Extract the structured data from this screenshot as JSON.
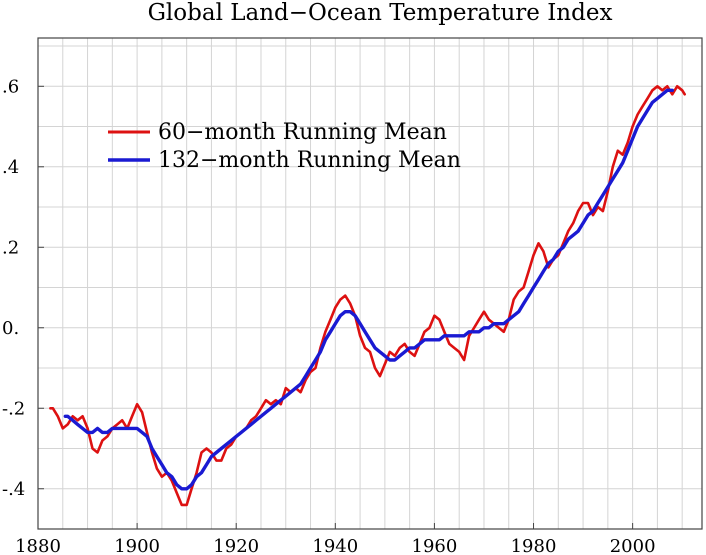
{
  "chart_data": {
    "type": "line",
    "title": "Global Land−Ocean Temperature Index",
    "xlabel": "",
    "ylabel": "",
    "xlim": [
      1880,
      2014
    ],
    "ylim": [
      -0.5,
      0.72
    ],
    "grid": true,
    "legend_position": "top-left",
    "x_ticks": [
      {
        "value": 1880,
        "label": "1880"
      },
      {
        "value": 1900,
        "label": "1900"
      },
      {
        "value": 1920,
        "label": "1920"
      },
      {
        "value": 1940,
        "label": "1940"
      },
      {
        "value": 1960,
        "label": "1960"
      },
      {
        "value": 1980,
        "label": "1980"
      },
      {
        "value": 2000,
        "label": "2000"
      }
    ],
    "x_minor_step": 5,
    "y_ticks": [
      {
        "value": -0.4,
        "label": "-.4"
      },
      {
        "value": -0.2,
        "label": "-.2"
      },
      {
        "value": 0.0,
        "label": "0."
      },
      {
        "value": 0.2,
        "label": "0.2"
      },
      {
        "value": 0.4,
        "label": ".4"
      },
      {
        "value": 0.6,
        "label": ".6"
      }
    ],
    "y_tick_labels_override": {
      "0.2": ".2"
    },
    "y_minor_step": 0.1,
    "series": [
      {
        "name": "60−month Running Mean",
        "color": "#dd1111",
        "x": [
          1882.5,
          1883,
          1884,
          1885,
          1886,
          1887,
          1888,
          1889,
          1890,
          1891,
          1892,
          1893,
          1894,
          1895,
          1896,
          1897,
          1898,
          1899,
          1900,
          1901,
          1902,
          1903,
          1904,
          1905,
          1906,
          1907,
          1908,
          1909,
          1910,
          1911,
          1912,
          1913,
          1914,
          1915,
          1916,
          1917,
          1918,
          1919,
          1920,
          1921,
          1922,
          1923,
          1924,
          1925,
          1926,
          1927,
          1928,
          1929,
          1930,
          1931,
          1932,
          1933,
          1934,
          1935,
          1936,
          1937,
          1938,
          1939,
          1940,
          1941,
          1942,
          1943,
          1944,
          1945,
          1946,
          1947,
          1948,
          1949,
          1950,
          1951,
          1952,
          1953,
          1954,
          1955,
          1956,
          1957,
          1958,
          1959,
          1960,
          1961,
          1962,
          1963,
          1964,
          1965,
          1966,
          1967,
          1968,
          1969,
          1970,
          1971,
          1972,
          1973,
          1974,
          1975,
          1976,
          1977,
          1978,
          1979,
          1980,
          1981,
          1982,
          1983,
          1984,
          1985,
          1986,
          1987,
          1988,
          1989,
          1990,
          1991,
          1992,
          1993,
          1994,
          1995,
          1996,
          1997,
          1998,
          1999,
          2000,
          2001,
          2002,
          2003,
          2004,
          2005,
          2006,
          2007,
          2008,
          2009,
          2010,
          2010.5
        ],
        "values": [
          -0.2,
          -0.2,
          -0.22,
          -0.25,
          -0.24,
          -0.22,
          -0.23,
          -0.22,
          -0.25,
          -0.3,
          -0.31,
          -0.28,
          -0.27,
          -0.25,
          -0.24,
          -0.23,
          -0.25,
          -0.22,
          -0.19,
          -0.21,
          -0.26,
          -0.31,
          -0.35,
          -0.37,
          -0.36,
          -0.38,
          -0.41,
          -0.44,
          -0.44,
          -0.4,
          -0.36,
          -0.31,
          -0.3,
          -0.31,
          -0.33,
          -0.33,
          -0.3,
          -0.29,
          -0.27,
          -0.26,
          -0.25,
          -0.23,
          -0.22,
          -0.2,
          -0.18,
          -0.19,
          -0.18,
          -0.19,
          -0.15,
          -0.16,
          -0.15,
          -0.16,
          -0.13,
          -0.11,
          -0.1,
          -0.05,
          -0.01,
          0.02,
          0.05,
          0.07,
          0.08,
          0.06,
          0.03,
          -0.02,
          -0.05,
          -0.06,
          -0.1,
          -0.12,
          -0.09,
          -0.06,
          -0.07,
          -0.05,
          -0.04,
          -0.06,
          -0.07,
          -0.04,
          -0.01,
          0.0,
          0.03,
          0.02,
          -0.01,
          -0.04,
          -0.05,
          -0.06,
          -0.08,
          -0.02,
          0.0,
          0.02,
          0.04,
          0.02,
          0.01,
          0.0,
          -0.01,
          0.02,
          0.07,
          0.09,
          0.1,
          0.14,
          0.18,
          0.21,
          0.19,
          0.15,
          0.17,
          0.18,
          0.21,
          0.24,
          0.26,
          0.29,
          0.31,
          0.31,
          0.28,
          0.3,
          0.29,
          0.34,
          0.4,
          0.44,
          0.43,
          0.46,
          0.5,
          0.53,
          0.55,
          0.57,
          0.59,
          0.6,
          0.59,
          0.6,
          0.58,
          0.6,
          0.59,
          0.58
        ]
      },
      {
        "name": "132−month Running Mean",
        "color": "#1a1ad2",
        "x": [
          1885.5,
          1886,
          1887,
          1888,
          1889,
          1890,
          1891,
          1892,
          1893,
          1894,
          1895,
          1896,
          1897,
          1898,
          1899,
          1900,
          1901,
          1902,
          1903,
          1904,
          1905,
          1906,
          1907,
          1908,
          1909,
          1910,
          1911,
          1912,
          1913,
          1914,
          1915,
          1916,
          1917,
          1918,
          1919,
          1920,
          1921,
          1922,
          1923,
          1924,
          1925,
          1926,
          1927,
          1928,
          1929,
          1930,
          1931,
          1932,
          1933,
          1934,
          1935,
          1936,
          1937,
          1938,
          1939,
          1940,
          1941,
          1942,
          1943,
          1944,
          1945,
          1946,
          1947,
          1948,
          1949,
          1950,
          1951,
          1952,
          1953,
          1954,
          1955,
          1956,
          1957,
          1958,
          1959,
          1960,
          1961,
          1962,
          1963,
          1964,
          1965,
          1966,
          1967,
          1968,
          1969,
          1970,
          1971,
          1972,
          1973,
          1974,
          1975,
          1976,
          1977,
          1978,
          1979,
          1980,
          1981,
          1982,
          1983,
          1984,
          1985,
          1986,
          1987,
          1988,
          1989,
          1990,
          1991,
          1992,
          1993,
          1994,
          1995,
          1996,
          1997,
          1998,
          1999,
          2000,
          2001,
          2002,
          2003,
          2004,
          2005,
          2006,
          2007,
          2008
        ],
        "values": [
          -0.22,
          -0.22,
          -0.23,
          -0.24,
          -0.25,
          -0.26,
          -0.26,
          -0.25,
          -0.26,
          -0.26,
          -0.25,
          -0.25,
          -0.25,
          -0.25,
          -0.25,
          -0.25,
          -0.26,
          -0.27,
          -0.3,
          -0.32,
          -0.34,
          -0.36,
          -0.37,
          -0.39,
          -0.4,
          -0.4,
          -0.39,
          -0.37,
          -0.36,
          -0.34,
          -0.32,
          -0.31,
          -0.3,
          -0.29,
          -0.28,
          -0.27,
          -0.26,
          -0.25,
          -0.24,
          -0.23,
          -0.22,
          -0.21,
          -0.2,
          -0.19,
          -0.18,
          -0.17,
          -0.16,
          -0.15,
          -0.14,
          -0.12,
          -0.1,
          -0.08,
          -0.06,
          -0.03,
          -0.01,
          0.01,
          0.03,
          0.04,
          0.04,
          0.03,
          0.01,
          -0.01,
          -0.03,
          -0.05,
          -0.06,
          -0.07,
          -0.08,
          -0.08,
          -0.07,
          -0.06,
          -0.05,
          -0.05,
          -0.04,
          -0.03,
          -0.03,
          -0.03,
          -0.03,
          -0.02,
          -0.02,
          -0.02,
          -0.02,
          -0.02,
          -0.01,
          -0.01,
          -0.01,
          0.0,
          0.0,
          0.01,
          0.01,
          0.01,
          0.02,
          0.03,
          0.04,
          0.06,
          0.08,
          0.1,
          0.12,
          0.14,
          0.16,
          0.17,
          0.19,
          0.2,
          0.22,
          0.23,
          0.24,
          0.26,
          0.28,
          0.29,
          0.31,
          0.33,
          0.35,
          0.37,
          0.39,
          0.41,
          0.44,
          0.47,
          0.5,
          0.52,
          0.54,
          0.56,
          0.57,
          0.58,
          0.59,
          0.59
        ]
      }
    ]
  }
}
